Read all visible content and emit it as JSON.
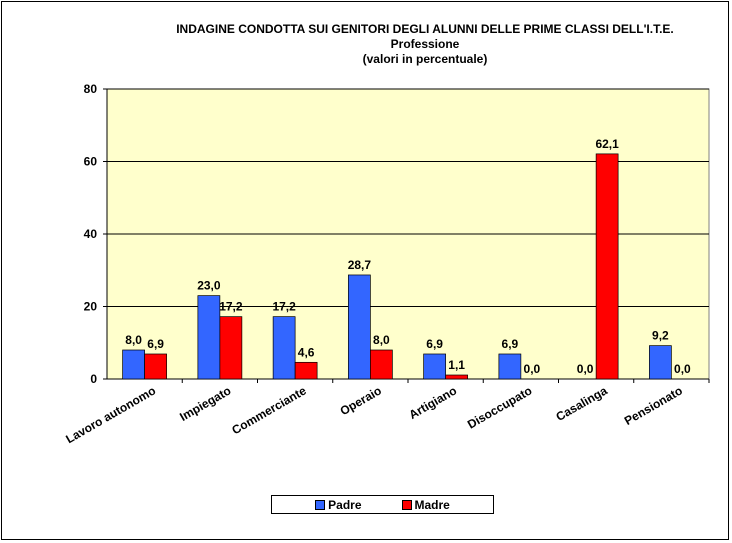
{
  "chart_data": {
    "type": "bar",
    "title": "INDAGINE CONDOTTA  SUI GENITORI DEGLI ALUNNI DELLE PRIME CLASSI DELL'I.T.E.",
    "subtitle": "Professione",
    "subtitle2": "(valori in percentuale)",
    "xlabel": "",
    "ylabel": "",
    "ylim": [
      0,
      80
    ],
    "yticks": [
      "0",
      "20",
      "40",
      "60",
      "80"
    ],
    "grid": true,
    "legend_position": "bottom",
    "categories": [
      "Lavoro autonomo",
      "Impiegato",
      "Commerciante",
      "Operaio",
      "Artigiano",
      "Disoccupato",
      "Casalinga",
      "Pensionato"
    ],
    "series": [
      {
        "name": "Padre",
        "color": "#3366ff",
        "values": [
          8.0,
          23.0,
          17.2,
          28.7,
          6.9,
          6.9,
          0.0,
          9.2
        ],
        "labels": [
          "8,0",
          "23,0",
          "17,2",
          "28,7",
          "6,9",
          "6,9",
          "0,0",
          "9,2"
        ]
      },
      {
        "name": "Madre",
        "color": "#ff0000",
        "values": [
          6.9,
          17.2,
          4.6,
          8.0,
          1.1,
          0.0,
          62.1,
          0.0
        ],
        "labels": [
          "6,9",
          "17,2",
          "4,6",
          "8,0",
          "1,1",
          "0,0",
          "62,1",
          "0,0"
        ]
      }
    ],
    "plot_background": "#ffffcc"
  }
}
